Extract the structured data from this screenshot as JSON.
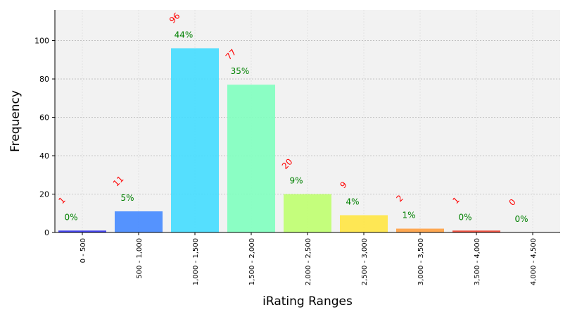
{
  "chart_data": {
    "type": "bar",
    "title": "",
    "xlabel": "iRating Ranges",
    "ylabel": "Frequency",
    "ylim": [
      0,
      116
    ],
    "yticks": [
      0,
      20,
      40,
      60,
      80,
      100
    ],
    "grid": true,
    "categories": [
      "0 - 500",
      "500 - 1,000",
      "1,000 - 1,500",
      "1,500 - 2,000",
      "2,000 - 2,500",
      "2,500 - 3,000",
      "3,000 - 3,500",
      "3,500 - 4,000",
      "4,000 - 4,500"
    ],
    "values": [
      1,
      11,
      96,
      77,
      20,
      9,
      2,
      1,
      0
    ],
    "percent_labels": [
      "0%",
      "5%",
      "44%",
      "35%",
      "9%",
      "4%",
      "1%",
      "0%",
      "0%"
    ],
    "count_labels": [
      "1",
      "11",
      "96",
      "77",
      "20",
      "9",
      "2",
      "1",
      "0"
    ],
    "colors": [
      "#3333ee",
      "#4488ff",
      "#44ddff",
      "#7fffbf",
      "#bfff6f",
      "#ffe642",
      "#ffa040",
      "#ee4433",
      "#cc0000"
    ],
    "count_label_color": "#ff0000",
    "percent_label_color": "#008000",
    "plot_background": "#f2f2f2"
  }
}
